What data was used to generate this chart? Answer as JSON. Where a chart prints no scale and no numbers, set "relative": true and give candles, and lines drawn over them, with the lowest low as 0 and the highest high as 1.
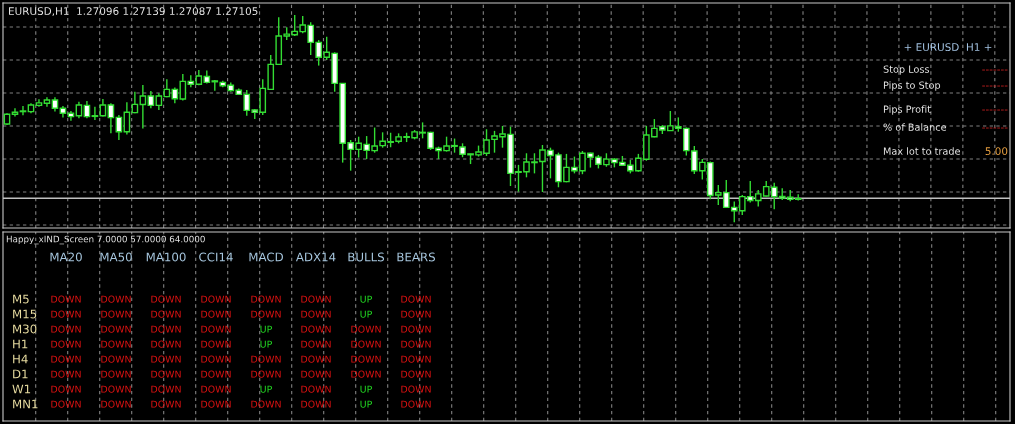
{
  "chart_data": [
    {
      "type": "candlestick",
      "title": "EURUSD,H1  1.27096 1.27139 1.27087 1.27105",
      "relative": true,
      "grid": true,
      "color": "#33dd33",
      "colors": [
        "#000000",
        "#000000",
        "#000000",
        "#000000",
        "#000000",
        "#000000",
        "#ffffff",
        "#ffffff",
        "#ffffff",
        "#000000",
        "#ffffff",
        "#ffffff",
        "#000000",
        "#ffffff",
        "#ffffff",
        "#000000",
        "#000000",
        "#000000",
        "#ffffff",
        "#000000",
        "#000000",
        "#ffffff",
        "#000000",
        "#ffffff",
        "#000000",
        "#ffffff",
        "#ffffff",
        "#ffffff",
        "#ffffff",
        "#ffffff",
        "#ffffff",
        "#ffffff",
        "#000000",
        "#000000",
        "#000000",
        "#000000",
        "#000000",
        "#000000",
        "#ffffff",
        "#ffffff",
        "#000000",
        "#ffffff",
        "#ffffff",
        "#ffffff",
        "#000000",
        "#ffffff",
        "#000000",
        "#000000",
        "#000000",
        "#000000",
        "#000000",
        "#000000",
        "#000000",
        "#ffffff",
        "#ffffff",
        "#000000",
        "#ffffff",
        "#ffffff",
        "#000000",
        "#000000",
        "#000000",
        "#000000",
        "#000000",
        "#ffffff",
        "#ffffff",
        "#000000",
        "#000000",
        "#000000",
        "#ffffff",
        "#ffffff",
        "#000000",
        "#ffffff",
        "#000000",
        "#ffffff",
        "#ffffff",
        "#000000",
        "#ffffff",
        "#ffffff",
        "#ffffff",
        "#000000",
        "#000000",
        "#000000",
        "#ffffff",
        "#000000",
        "#ffffff",
        "#ffffff",
        "#ffffff",
        "#000000",
        "#ffffff",
        "#000000",
        "#ffffff",
        "#ffffff",
        "#000000",
        "#ffffff",
        "#000000",
        "#000000",
        "#ffffff",
        "#ffffff",
        "#ffffff",
        "#000000",
        null,
        null,
        null,
        null,
        null,
        null,
        null,
        null,
        null,
        null,
        null,
        null,
        null,
        null,
        null,
        null,
        null,
        null,
        null,
        null,
        null,
        null,
        null,
        null,
        null,
        null
      ],
      "categories": [
        null,
        null,
        null,
        null,
        null,
        null,
        null,
        null,
        null,
        null,
        null,
        null,
        null,
        null,
        null,
        null,
        null,
        null,
        null,
        null,
        null,
        null,
        null,
        null,
        null,
        null,
        null,
        null,
        null,
        null,
        null,
        null,
        null,
        null,
        null,
        null,
        null,
        null,
        null,
        null,
        null,
        null,
        null,
        null,
        null,
        null,
        null,
        null,
        null,
        null,
        null,
        null,
        null,
        null,
        null,
        null,
        null,
        null,
        null,
        null,
        null,
        null,
        null,
        null,
        null,
        null,
        null,
        null,
        null,
        null,
        null,
        null,
        null,
        null,
        null,
        null,
        null,
        null,
        null,
        null,
        null,
        null,
        null,
        null,
        null,
        null,
        null,
        null,
        null,
        null,
        null,
        null,
        null,
        null,
        null,
        null,
        null,
        null,
        null,
        null,
        null,
        null,
        null,
        null,
        null,
        null,
        null,
        null,
        null,
        null,
        null,
        null,
        null,
        null,
        null,
        null,
        null,
        null,
        null,
        null,
        null,
        null,
        null,
        null,
        null,
        null
      ],
      "ohlc": [
        [
          0.474,
          0.526,
          0.469,
          0.521
        ],
        [
          0.521,
          0.55,
          0.51,
          0.531
        ],
        [
          0.534,
          0.561,
          0.516,
          0.537
        ],
        [
          0.534,
          0.574,
          0.526,
          0.566
        ],
        [
          0.564,
          0.593,
          0.558,
          0.576
        ],
        [
          0.574,
          0.603,
          0.558,
          0.59
        ],
        [
          0.59,
          0.603,
          0.534,
          0.55
        ],
        [
          0.55,
          0.561,
          0.506,
          0.526
        ],
        [
          0.526,
          0.537,
          0.49,
          0.51
        ],
        [
          0.514,
          0.582,
          0.502,
          0.566
        ],
        [
          0.564,
          0.585,
          0.502,
          0.51
        ],
        [
          0.514,
          0.558,
          0.494,
          0.511
        ],
        [
          0.514,
          0.595,
          0.51,
          0.566
        ],
        [
          0.566,
          0.574,
          0.429,
          0.505
        ],
        [
          0.506,
          0.518,
          0.397,
          0.437
        ],
        [
          0.437,
          0.579,
          0.424,
          0.531
        ],
        [
          0.529,
          0.63,
          0.526,
          0.569
        ],
        [
          0.568,
          0.662,
          0.453,
          0.609
        ],
        [
          0.609,
          0.633,
          0.55,
          0.564
        ],
        [
          0.564,
          0.622,
          0.542,
          0.609
        ],
        [
          0.606,
          0.69,
          0.603,
          0.641
        ],
        [
          0.641,
          0.65,
          0.574,
          0.596
        ],
        [
          0.595,
          0.715,
          0.587,
          0.68
        ],
        [
          0.68,
          0.709,
          0.651,
          0.666
        ],
        [
          0.666,
          0.735,
          0.661,
          0.706
        ],
        [
          0.703,
          0.732,
          0.67,
          0.675
        ],
        [
          0.682,
          0.686,
          0.635,
          0.678
        ],
        [
          0.675,
          0.683,
          0.651,
          0.659
        ],
        [
          0.661,
          0.674,
          0.63,
          0.635
        ],
        [
          0.637,
          0.646,
          0.614,
          0.617
        ],
        [
          0.617,
          0.638,
          0.514,
          0.54
        ],
        [
          0.542,
          0.547,
          0.498,
          0.531
        ],
        [
          0.531,
          0.69,
          0.518,
          0.646
        ],
        [
          0.641,
          0.807,
          0.638,
          0.762
        ],
        [
          0.762,
          0.989,
          0.759,
          0.899
        ],
        [
          0.899,
          0.941,
          0.879,
          0.908
        ],
        [
          0.905,
          1,
          0.899,
          0.921
        ],
        [
          0.92,
          0.995,
          0.912,
          0.952
        ],
        [
          0.95,
          0.965,
          0.807,
          0.868
        ],
        [
          0.868,
          0.879,
          0.756,
          0.796
        ],
        [
          0.796,
          0.895,
          0.783,
          0.82
        ],
        [
          0.815,
          0.82,
          0.63,
          0.67
        ],
        [
          0.67,
          0.67,
          0.288,
          0.381
        ],
        [
          0.384,
          0.397,
          0.249,
          0.352
        ],
        [
          0.352,
          0.413,
          0.312,
          0.381
        ],
        [
          0.376,
          0.416,
          0.305,
          0.347
        ],
        [
          0.346,
          0.457,
          0.336,
          0.368
        ],
        [
          0.37,
          0.434,
          0.36,
          0.391
        ],
        [
          0.386,
          0.432,
          0.362,
          0.389
        ],
        [
          0.391,
          0.429,
          0.381,
          0.412
        ],
        [
          0.41,
          0.432,
          0.387,
          0.413
        ],
        [
          0.408,
          0.445,
          0.4,
          0.436
        ],
        [
          0.431,
          0.482,
          0.405,
          0.434
        ],
        [
          0.434,
          0.437,
          0.349,
          0.357
        ],
        [
          0.357,
          0.365,
          0.305,
          0.346
        ],
        [
          0.346,
          0.413,
          0.341,
          0.368
        ],
        [
          0.37,
          0.404,
          0.336,
          0.367
        ],
        [
          0.363,
          0.381,
          0.314,
          0.328
        ],
        [
          0.326,
          0.331,
          0.281,
          0.33
        ],
        [
          0.325,
          0.37,
          0.317,
          0.339
        ],
        [
          0.333,
          0.449,
          0.32,
          0.397
        ],
        [
          0.4,
          0.441,
          0.336,
          0.416
        ],
        [
          0.413,
          0.465,
          0.36,
          0.426
        ],
        [
          0.424,
          0.461,
          0.175,
          0.236
        ],
        [
          0.244,
          0.277,
          0.148,
          0.241
        ],
        [
          0.244,
          0.333,
          0.217,
          0.291
        ],
        [
          0.288,
          0.333,
          0.236,
          0.291
        ],
        [
          0.293,
          0.373,
          0.146,
          0.349
        ],
        [
          0.347,
          0.36,
          0.212,
          0.322
        ],
        [
          0.325,
          0.336,
          0.169,
          0.196
        ],
        [
          0.196,
          0.33,
          0.193,
          0.265
        ],
        [
          0.265,
          0.317,
          0.236,
          0.249
        ],
        [
          0.249,
          0.344,
          0.232,
          0.333
        ],
        [
          0.333,
          0.336,
          0.264,
          0.314
        ],
        [
          0.314,
          0.325,
          0.26,
          0.28
        ],
        [
          0.278,
          0.333,
          0.268,
          0.305
        ],
        [
          0.304,
          0.309,
          0.265,
          0.288
        ],
        [
          0.289,
          0.32,
          0.272,
          0.275
        ],
        [
          0.275,
          0.301,
          0.236,
          0.249
        ],
        [
          0.249,
          0.33,
          0.244,
          0.309
        ],
        [
          0.304,
          0.465,
          0.297,
          0.421
        ],
        [
          0.413,
          0.498,
          0.41,
          0.453
        ],
        [
          0.461,
          0.469,
          0.426,
          0.445
        ],
        [
          0.442,
          0.537,
          0.441,
          0.465
        ],
        [
          0.461,
          0.506,
          0.437,
          0.453
        ],
        [
          0.453,
          0.457,
          0.322,
          0.346
        ],
        [
          0.344,
          0.368,
          0.233,
          0.249
        ],
        [
          0.249,
          0.305,
          0.207,
          0.289
        ],
        [
          0.288,
          0.293,
          0.111,
          0.129
        ],
        [
          0.132,
          0.18,
          0.084,
          0.143
        ],
        [
          0.143,
          0.204,
          0.071,
          0.072
        ],
        [
          0.072,
          0.1,
          0,
          0.056
        ],
        [
          0.056,
          0.132,
          0.035,
          0.124
        ],
        [
          0.124,
          0.199,
          0.095,
          0.105
        ],
        [
          0.105,
          0.156,
          0.076,
          0.137
        ],
        [
          0.127,
          0.199,
          0.124,
          0.172
        ],
        [
          0.169,
          0.191,
          0.063,
          0.124
        ],
        [
          0.125,
          0.164,
          0.108,
          0.117
        ],
        [
          0.121,
          0.156,
          0.101,
          0.111
        ],
        [
          0.111,
          0.135,
          0.105,
          0.114
        ],
        null,
        null,
        null,
        null,
        null,
        null,
        null,
        null,
        null,
        null,
        null,
        null,
        null,
        null,
        null,
        null,
        null,
        null,
        null,
        null,
        null,
        null,
        null,
        null,
        null,
        null
      ],
      "ref_lines": [
        {
          "axis": "y",
          "value": 0.116,
          "color": "#c0c0c0"
        }
      ],
      "annotations": [
        "+ EURUSD  H1 +",
        "Stop Loss",
        "-------",
        "Pips to Stop",
        "-------",
        "Pips Profit",
        "-------",
        "% of Balance",
        "-------",
        "Max lot to trade",
        "5.00"
      ]
    },
    {
      "type": "other",
      "title": "Happy_xIND_Screen 7.0000 57.0000 64.0000",
      "categories": [
        "MA20",
        "MA50",
        "MA100",
        "CCI14",
        "MACD",
        "ADX14",
        "BULLS",
        "BEARS"
      ],
      "y_categories": [
        "M5",
        "M15",
        "M30",
        "H1",
        "H4",
        "D1",
        "W1",
        "MN1"
      ],
      "cell_labels": [
        [
          "DOWN",
          "DOWN",
          "DOWN",
          "DOWN",
          "DOWN",
          "DOWN",
          "UP",
          "DOWN"
        ],
        [
          "DOWN",
          "DOWN",
          "DOWN",
          "DOWN",
          "DOWN",
          "DOWN",
          "UP",
          "DOWN"
        ],
        [
          "DOWN",
          "DOWN",
          "DOWN",
          "DOWN",
          "UP",
          "DOWN",
          "DOWN",
          "DOWN"
        ],
        [
          "DOWN",
          "DOWN",
          "DOWN",
          "DOWN",
          "UP",
          "DOWN",
          "DOWN",
          "DOWN"
        ],
        [
          "DOWN",
          "DOWN",
          "DOWN",
          "DOWN",
          "DOWN",
          "DOWN",
          "DOWN",
          "DOWN"
        ],
        [
          "DOWN",
          "DOWN",
          "DOWN",
          "DOWN",
          "DOWN",
          "DOWN",
          "DOWN",
          "DOWN"
        ],
        [
          "DOWN",
          "DOWN",
          "DOWN",
          "DOWN",
          "UP",
          "DOWN",
          "UP",
          "DOWN"
        ],
        [
          "DOWN",
          "DOWN",
          "DOWN",
          "DOWN",
          "DOWN",
          "DOWN",
          "UP",
          "DOWN"
        ]
      ],
      "colors": [
        [
          "#dd1111",
          "#dd1111",
          "#dd1111",
          "#dd1111",
          "#dd1111",
          "#dd1111",
          "#22dd22",
          "#dd1111"
        ],
        [
          "#dd1111",
          "#dd1111",
          "#dd1111",
          "#dd1111",
          "#dd1111",
          "#dd1111",
          "#22dd22",
          "#dd1111"
        ],
        [
          "#dd1111",
          "#dd1111",
          "#dd1111",
          "#dd1111",
          "#22dd22",
          "#dd1111",
          "#dd1111",
          "#dd1111"
        ],
        [
          "#dd1111",
          "#dd1111",
          "#dd1111",
          "#dd1111",
          "#22dd22",
          "#dd1111",
          "#dd1111",
          "#dd1111"
        ],
        [
          "#dd1111",
          "#dd1111",
          "#dd1111",
          "#dd1111",
          "#dd1111",
          "#dd1111",
          "#dd1111",
          "#dd1111"
        ],
        [
          "#dd1111",
          "#dd1111",
          "#dd1111",
          "#dd1111",
          "#dd1111",
          "#dd1111",
          "#dd1111",
          "#dd1111"
        ],
        [
          "#dd1111",
          "#dd1111",
          "#dd1111",
          "#dd1111",
          "#22dd22",
          "#dd1111",
          "#22dd22",
          "#dd1111"
        ],
        [
          "#dd1111",
          "#dd1111",
          "#dd1111",
          "#dd1111",
          "#dd1111",
          "#dd1111",
          "#22dd22",
          "#dd1111"
        ]
      ]
    }
  ]
}
